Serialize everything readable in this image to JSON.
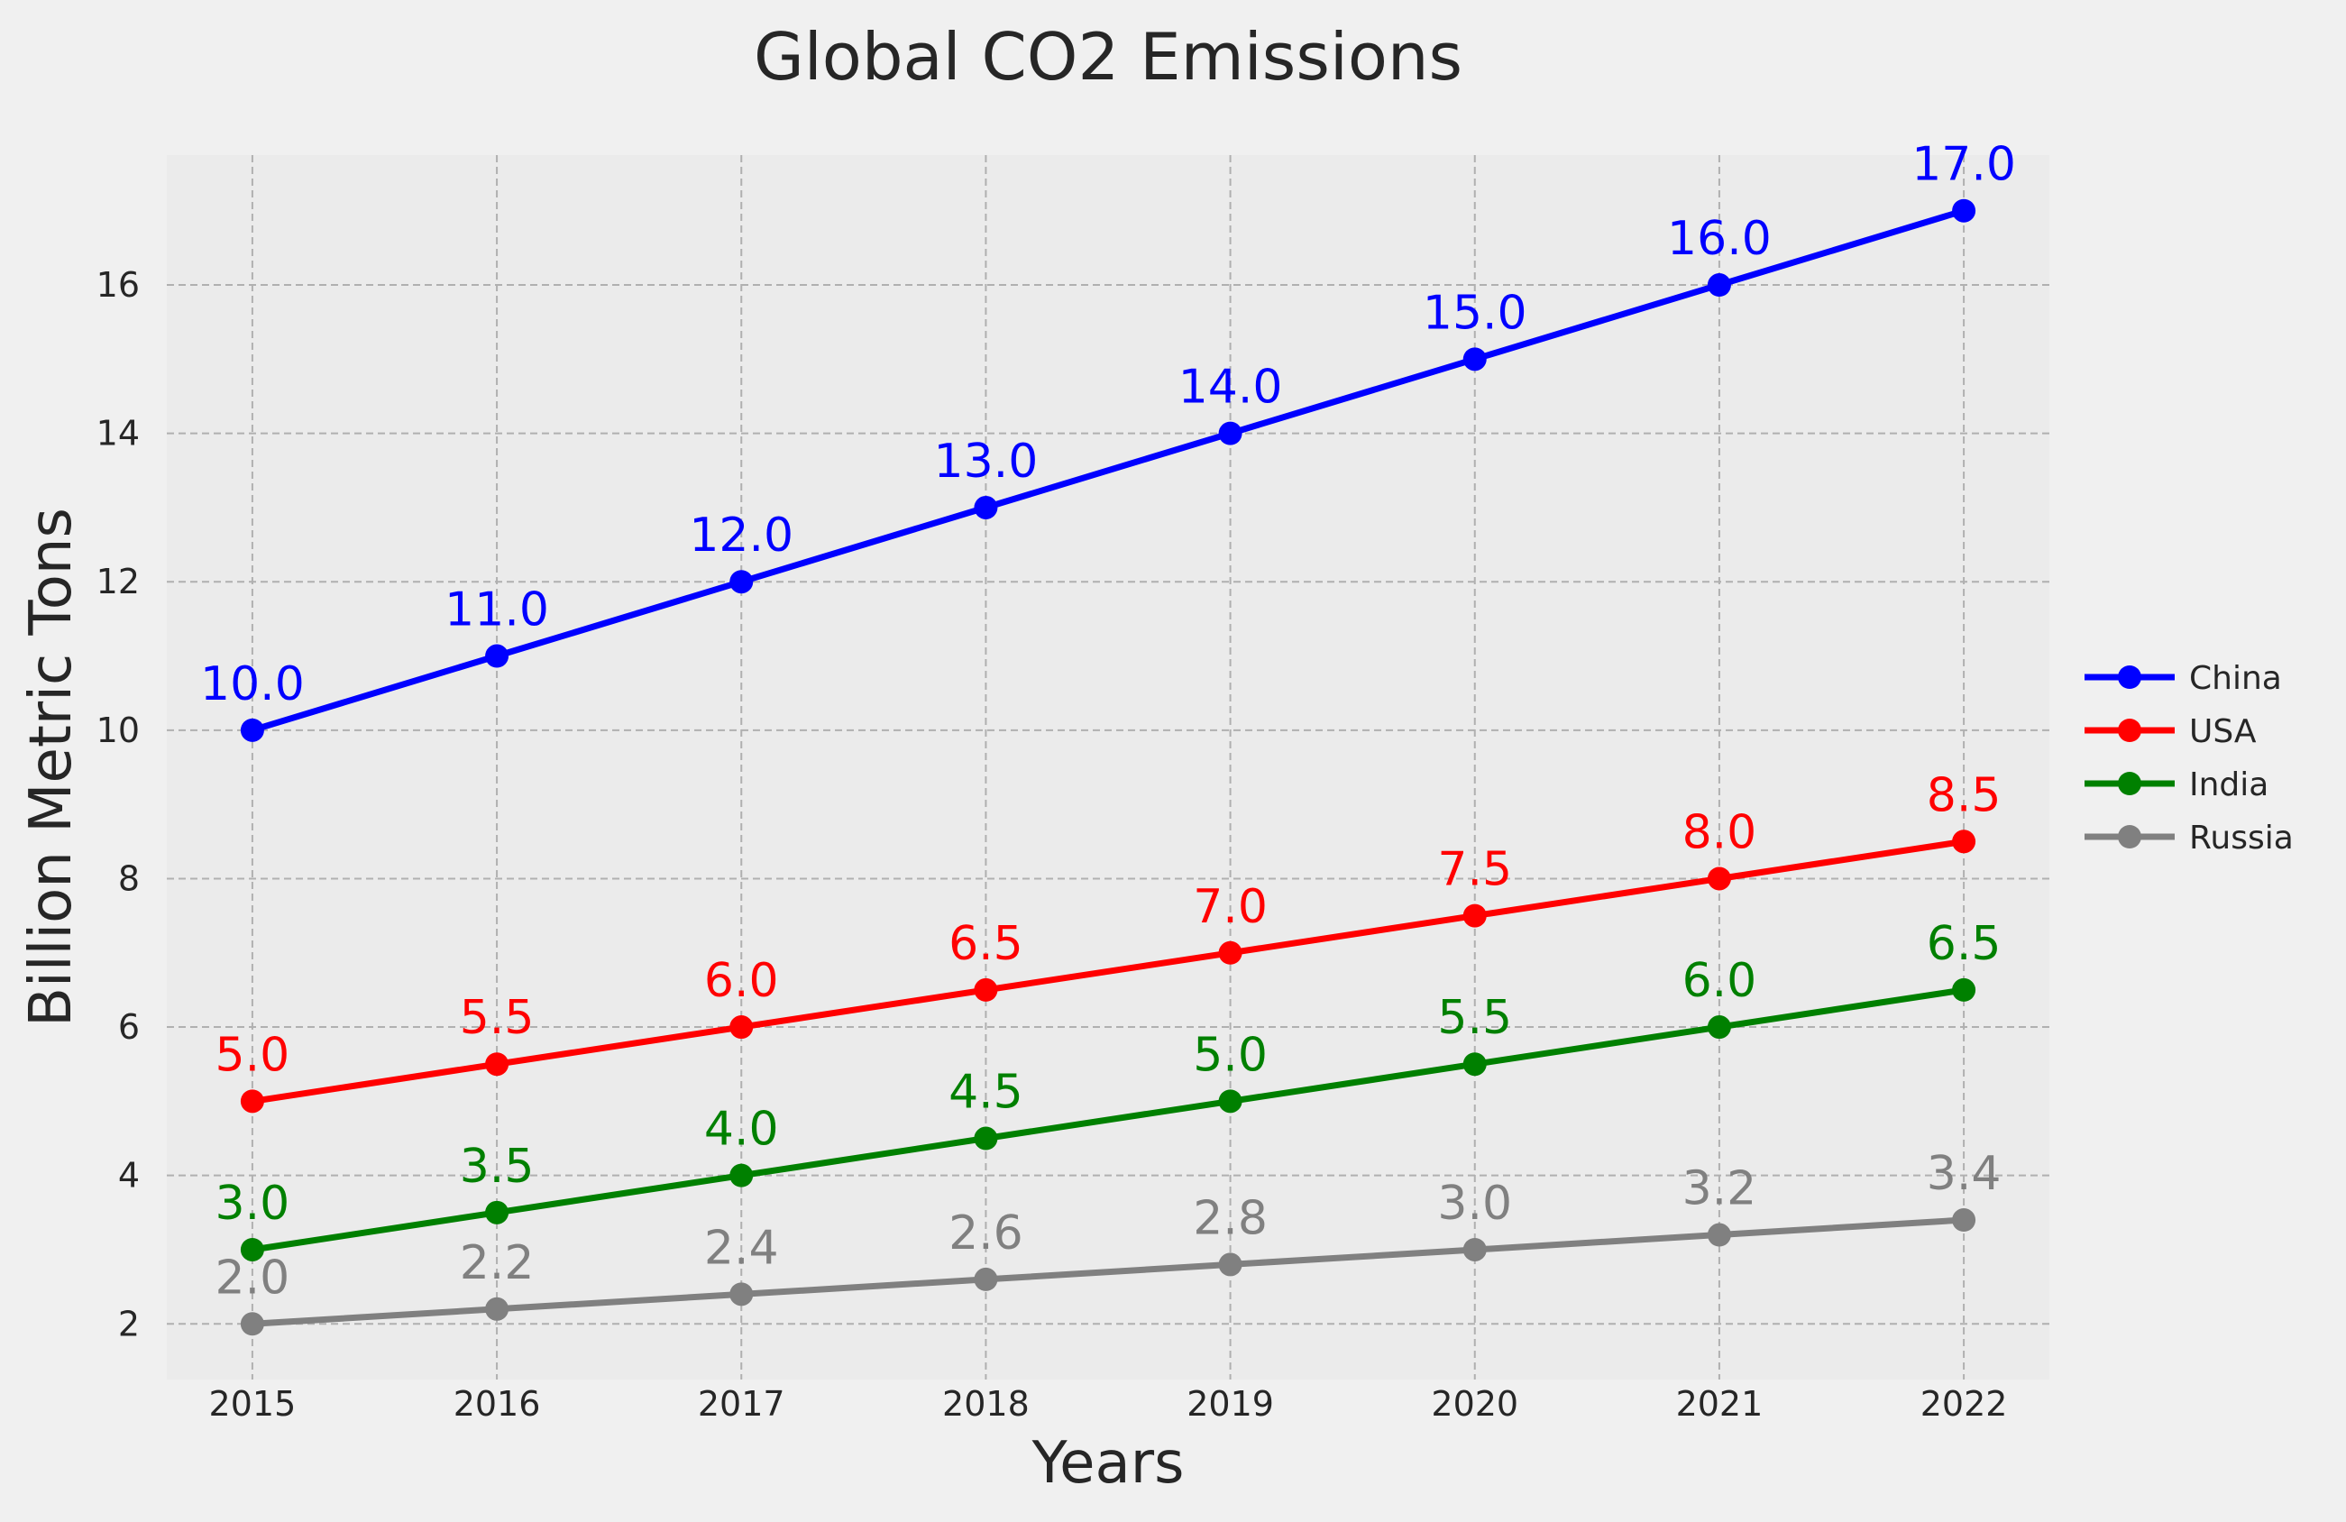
{
  "chart_data": {
    "type": "line",
    "title": "Global CO2 Emissions",
    "xlabel": "Years",
    "ylabel": "Billion Metric Tons",
    "x": [
      2015,
      2016,
      2017,
      2018,
      2019,
      2020,
      2021,
      2022
    ],
    "xlim": [
      2014.65,
      2022.35
    ],
    "ylim": [
      1.25,
      17.75
    ],
    "yticks": [
      2,
      4,
      6,
      8,
      10,
      12,
      14,
      16
    ],
    "grid": true,
    "legend_position": "right",
    "series": [
      {
        "name": "China",
        "color": "#0000ff",
        "values": [
          10.0,
          11.0,
          12.0,
          13.0,
          14.0,
          15.0,
          16.0,
          17.0
        ],
        "labels": [
          "10.0",
          "11.0",
          "12.0",
          "13.0",
          "14.0",
          "15.0",
          "16.0",
          "17.0"
        ]
      },
      {
        "name": "USA",
        "color": "#ff0000",
        "values": [
          5.0,
          5.5,
          6.0,
          6.5,
          7.0,
          7.5,
          8.0,
          8.5
        ],
        "labels": [
          "5.0",
          "5.5",
          "6.0",
          "6.5",
          "7.0",
          "7.5",
          "8.0",
          "8.5"
        ]
      },
      {
        "name": "India",
        "color": "#008000",
        "values": [
          3.0,
          3.5,
          4.0,
          4.5,
          5.0,
          5.5,
          6.0,
          6.5
        ],
        "labels": [
          "3.0",
          "3.5",
          "4.0",
          "4.5",
          "5.0",
          "5.5",
          "6.0",
          "6.5"
        ]
      },
      {
        "name": "Russia",
        "color": "#808080",
        "values": [
          2.0,
          2.2,
          2.4,
          2.6,
          2.8,
          3.0,
          3.2,
          3.4
        ],
        "labels": [
          "2.0",
          "2.2",
          "2.4",
          "2.6",
          "2.8",
          "3.0",
          "3.2",
          "3.4"
        ]
      }
    ]
  }
}
